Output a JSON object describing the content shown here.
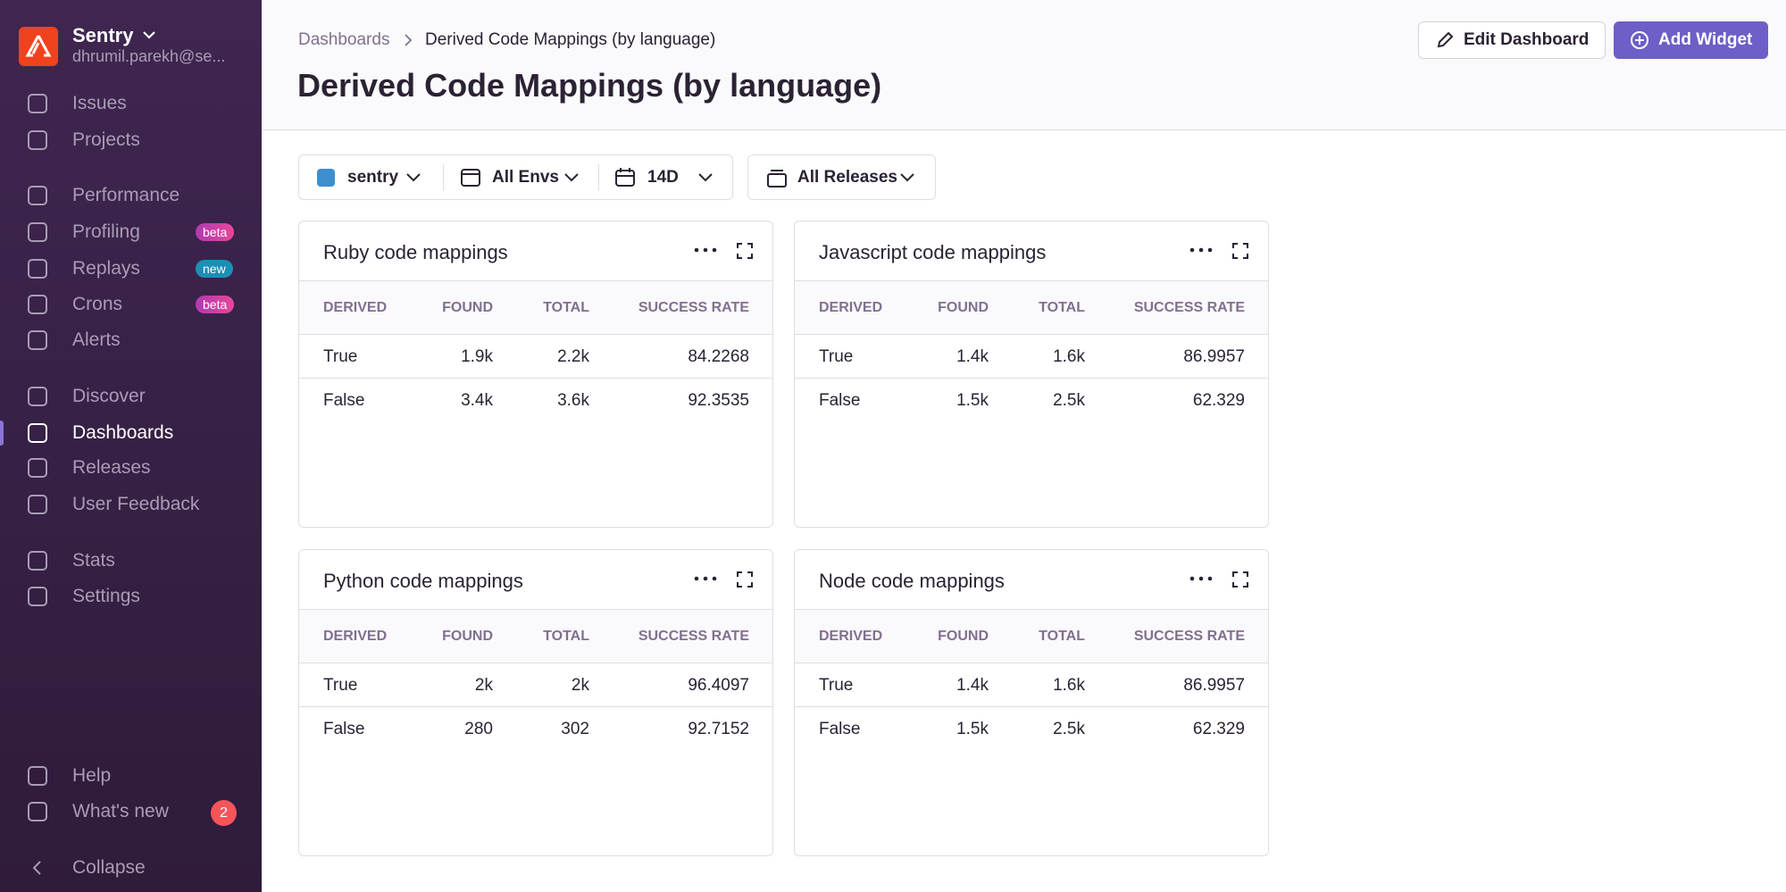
{
  "sidebar": {
    "org": "Sentry",
    "user": "dhrumil.parekh@se...",
    "items": [
      {
        "label": "Issues"
      },
      {
        "label": "Projects"
      },
      {
        "label": "Performance"
      },
      {
        "label": "Profiling",
        "badge": "beta"
      },
      {
        "label": "Replays",
        "badge": "new"
      },
      {
        "label": "Crons",
        "badge": "beta"
      },
      {
        "label": "Alerts"
      },
      {
        "label": "Discover"
      },
      {
        "label": "Dashboards"
      },
      {
        "label": "Releases"
      },
      {
        "label": "User Feedback"
      },
      {
        "label": "Stats"
      },
      {
        "label": "Settings"
      }
    ],
    "footer": [
      {
        "label": "Help"
      },
      {
        "label": "What's new",
        "badge": 2
      },
      {
        "label": "Collapse"
      }
    ]
  },
  "breadcrumb": [
    "Dashboards",
    "Derived Code Mappings (by language)"
  ],
  "title": "Derived Code Mappings (by language)",
  "actions": [
    "Edit Dashboard",
    "Add Widget"
  ],
  "filters": [
    "sentry",
    "All Envs",
    "14D",
    "All Releases"
  ],
  "widgets": [
    {
      "title": "Ruby code mappings",
      "columns": [
        "DERIVED",
        "FOUND",
        "TOTAL",
        "SUCCESS RATE"
      ],
      "rows": [
        [
          "True",
          "1.9k",
          "2.2k",
          "84.2268"
        ],
        [
          "False",
          "3.4k",
          "3.6k",
          "92.3535"
        ]
      ]
    },
    {
      "title": "Javascript code mappings",
      "columns": [
        "DERIVED",
        "FOUND",
        "TOTAL",
        "SUCCESS RATE"
      ],
      "rows": [
        [
          "True",
          "1.4k",
          "1.6k",
          "86.9957"
        ],
        [
          "False",
          "1.5k",
          "2.5k",
          "62.329"
        ]
      ]
    },
    {
      "title": "Python code mappings",
      "columns": [
        "DERIVED",
        "FOUND",
        "TOTAL",
        "SUCCESS RATE"
      ],
      "rows": [
        [
          "True",
          "2k",
          "2k",
          "96.4097"
        ],
        [
          "False",
          "280",
          "302",
          "92.7152"
        ]
      ]
    },
    {
      "title": "Node code mappings",
      "columns": [
        "DERIVED",
        "FOUND",
        "TOTAL",
        "SUCCESS RATE"
      ],
      "rows": [
        [
          "True",
          "1.4k",
          "1.6k",
          "86.9957"
        ],
        [
          "False",
          "1.5k",
          "2.5k",
          "62.329"
        ]
      ]
    }
  ]
}
